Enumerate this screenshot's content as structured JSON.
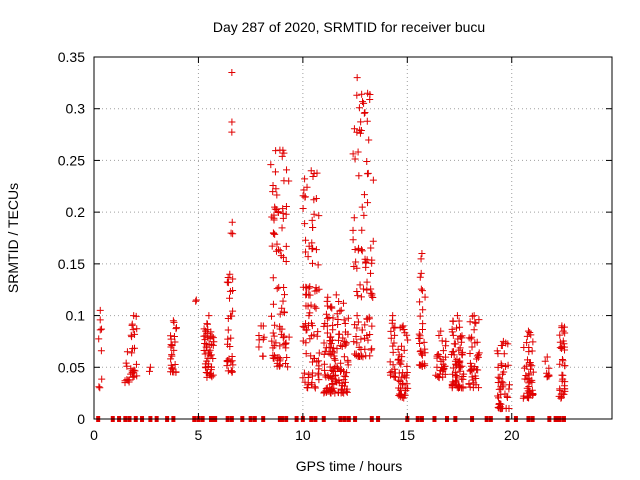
{
  "chart_data": {
    "type": "scatter",
    "title": "Day 287 of 2020, SRMTID for receiver bucu",
    "xlabel": "GPS time / hours",
    "ylabel": "SRMTID / TECUs",
    "xlim": [
      0,
      24.8
    ],
    "ylim": [
      0,
      0.35
    ],
    "grid": true,
    "marker": "plus",
    "marker_color": "#e00000",
    "x_ticks": [
      {
        "value": 0,
        "label": "0"
      },
      {
        "value": 5,
        "label": "5"
      },
      {
        "value": 10,
        "label": "10"
      },
      {
        "value": 15,
        "label": "15"
      },
      {
        "value": 20,
        "label": "20"
      }
    ],
    "y_ticks": [
      {
        "value": 0,
        "label": "0"
      },
      {
        "value": 0.05,
        "label": "0.05"
      },
      {
        "value": 0.1,
        "label": "0.1"
      },
      {
        "value": 0.15,
        "label": "0.15"
      },
      {
        "value": 0.2,
        "label": "0.2"
      },
      {
        "value": 0.25,
        "label": "0.25"
      },
      {
        "value": 0.3,
        "label": "0.3"
      },
      {
        "value": 0.35,
        "label": "0.35"
      }
    ],
    "zero_markers_x": [
      0.2,
      0.9,
      1.2,
      1.5,
      1.7,
      2.0,
      2.3,
      2.7,
      3.0,
      3.5,
      3.8,
      4.8,
      5.0,
      5.2,
      5.6,
      5.7,
      5.8,
      6.4,
      6.6,
      7.1,
      7.5,
      7.7,
      8.1,
      8.9,
      9.0,
      9.2,
      9.7,
      10.0,
      10.4,
      10.6,
      11.0,
      11.8,
      12.0,
      12.2,
      12.5,
      13.3,
      13.6,
      15.0,
      15.5,
      15.7,
      16.3,
      16.9,
      17.3,
      18.1,
      18.8,
      19.0,
      19.8,
      20.2,
      20.8,
      21.0,
      21.8,
      22.1,
      22.2,
      22.3,
      22.5
    ],
    "clusters": [
      {
        "x": 0.3,
        "width": 0.15,
        "y_min": 0.03,
        "y_max": 0.105,
        "count": 8
      },
      {
        "x": 1.6,
        "width": 0.25,
        "y_min": 0.035,
        "y_max": 0.065,
        "count": 8
      },
      {
        "x": 1.9,
        "width": 0.3,
        "y_min": 0.04,
        "y_max": 0.1,
        "count": 22
      },
      {
        "x": 2.7,
        "width": 0.1,
        "y_min": 0.045,
        "y_max": 0.05,
        "count": 1
      },
      {
        "x": 3.8,
        "width": 0.35,
        "y_min": 0.045,
        "y_max": 0.095,
        "count": 24
      },
      {
        "x": 4.9,
        "width": 0.1,
        "y_min": 0.11,
        "y_max": 0.115,
        "count": 1
      },
      {
        "x": 5.5,
        "width": 0.5,
        "y_min": 0.04,
        "y_max": 0.1,
        "count": 50
      },
      {
        "x": 6.5,
        "width": 0.3,
        "y_min": 0.045,
        "y_max": 0.14,
        "count": 30
      },
      {
        "x": 6.6,
        "width": 0.08,
        "y_min": 0.17,
        "y_max": 0.335,
        "count": 5
      },
      {
        "x": 8.0,
        "width": 0.3,
        "y_min": 0.06,
        "y_max": 0.09,
        "count": 8
      },
      {
        "x": 8.9,
        "width": 0.9,
        "y_min": 0.05,
        "y_max": 0.26,
        "count": 90
      },
      {
        "x": 10.4,
        "width": 0.8,
        "y_min": 0.03,
        "y_max": 0.24,
        "count": 90
      },
      {
        "x": 11.6,
        "width": 1.2,
        "y_min": 0.025,
        "y_max": 0.12,
        "count": 130
      },
      {
        "x": 12.6,
        "width": 0.4,
        "y_min": 0.06,
        "y_max": 0.33,
        "count": 40
      },
      {
        "x": 13.1,
        "width": 0.6,
        "y_min": 0.06,
        "y_max": 0.315,
        "count": 60
      },
      {
        "x": 14.3,
        "width": 0.3,
        "y_min": 0.04,
        "y_max": 0.1,
        "count": 20
      },
      {
        "x": 14.8,
        "width": 0.5,
        "y_min": 0.02,
        "y_max": 0.09,
        "count": 45
      },
      {
        "x": 15.7,
        "width": 0.3,
        "y_min": 0.05,
        "y_max": 0.16,
        "count": 30
      },
      {
        "x": 16.6,
        "width": 0.5,
        "y_min": 0.04,
        "y_max": 0.085,
        "count": 30
      },
      {
        "x": 17.4,
        "width": 0.6,
        "y_min": 0.03,
        "y_max": 0.1,
        "count": 70
      },
      {
        "x": 18.2,
        "width": 0.5,
        "y_min": 0.03,
        "y_max": 0.1,
        "count": 40
      },
      {
        "x": 19.6,
        "width": 0.6,
        "y_min": 0.01,
        "y_max": 0.075,
        "count": 45
      },
      {
        "x": 20.8,
        "width": 0.5,
        "y_min": 0.02,
        "y_max": 0.085,
        "count": 45
      },
      {
        "x": 21.7,
        "width": 0.2,
        "y_min": 0.04,
        "y_max": 0.06,
        "count": 8
      },
      {
        "x": 22.4,
        "width": 0.3,
        "y_min": 0.02,
        "y_max": 0.09,
        "count": 35
      }
    ]
  }
}
